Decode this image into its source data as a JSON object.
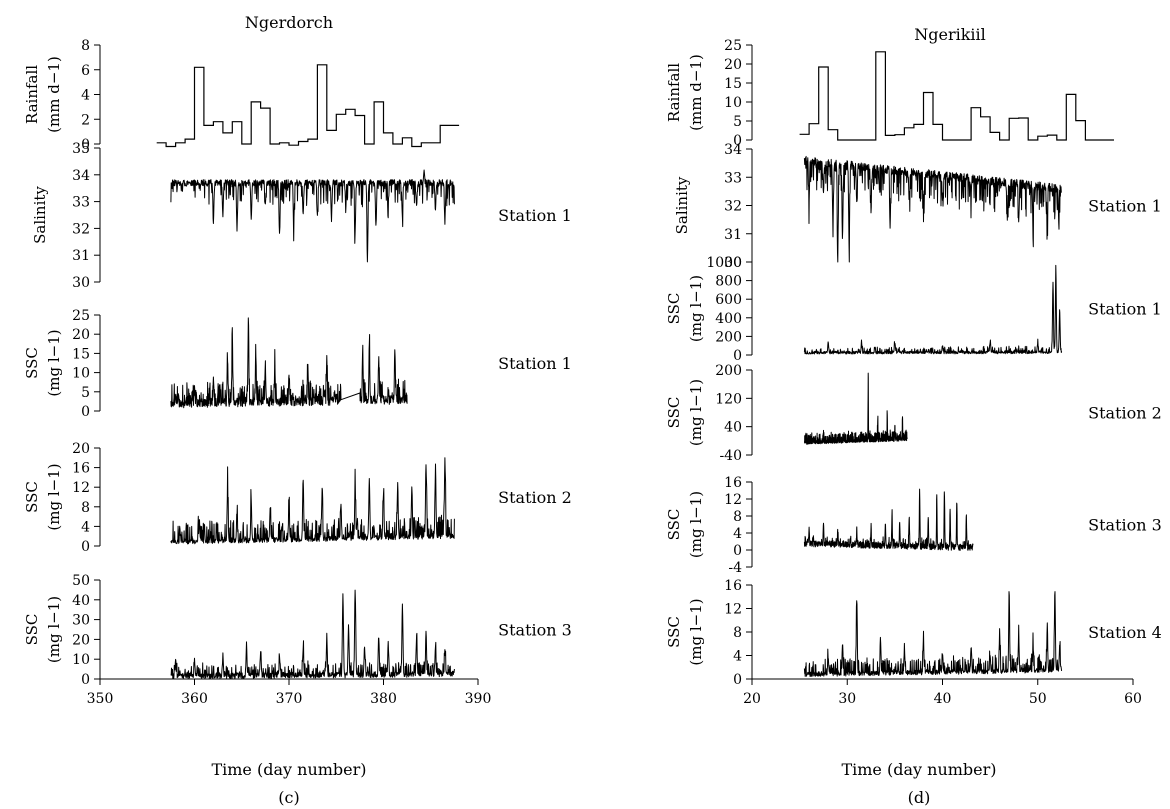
{
  "chart_data": [
    {
      "panel": "(c)",
      "title": "Ngerdorch",
      "type": "line",
      "xlabel": "Time (day number)",
      "xlim": [
        350,
        390
      ],
      "xticks": [
        350,
        360,
        370,
        380,
        390
      ],
      "subplots": [
        {
          "id": "c-rain",
          "kind": "step",
          "ylabel": [
            "Rainfall",
            "(mm d−1)"
          ],
          "station": "",
          "ylim": [
            0,
            8
          ],
          "yticks": [
            0,
            2,
            4,
            6,
            8
          ],
          "x": [
            356,
            357,
            358,
            359,
            360,
            361,
            362,
            363,
            364,
            365,
            366,
            367,
            368,
            369,
            370,
            371,
            372,
            373,
            374,
            375,
            376,
            377,
            378,
            379,
            380,
            381,
            382,
            383,
            384,
            385,
            386,
            387
          ],
          "values": [
            0.1,
            -0.2,
            0.1,
            0.4,
            6.2,
            1.5,
            1.8,
            0.9,
            1.8,
            0,
            3.4,
            2.9,
            0,
            0.1,
            -0.1,
            0.2,
            0.4,
            6.4,
            1.1,
            2.4,
            2.8,
            2.3,
            0,
            3.4,
            0.9,
            0,
            0.5,
            -0.2,
            0.1,
            0.1,
            1.5,
            1.5
          ]
        },
        {
          "id": "c-sal",
          "kind": "signal",
          "ylabel": [
            "Salinity"
          ],
          "station": "Station 1",
          "ylim": [
            30,
            35
          ],
          "yticks": [
            30,
            31,
            32,
            33,
            34,
            35
          ],
          "range": [
            357.5,
            387.5
          ],
          "base": 33.7,
          "baseEnd": 33.7,
          "noise": 0.12,
          "dir": -1,
          "spikes": [
            [
              362,
              1.6
            ],
            [
              363,
              1.2
            ],
            [
              364.5,
              1.8
            ],
            [
              366,
              1.4
            ],
            [
              367.5,
              0.9
            ],
            [
              369,
              1.9
            ],
            [
              370.5,
              1.7
            ],
            [
              371.5,
              1.2
            ],
            [
              373,
              1.1
            ],
            [
              374.5,
              1.4
            ],
            [
              376,
              0.9
            ],
            [
              377,
              1.8
            ],
            [
              378.3,
              2.9
            ],
            [
              379.2,
              1.6
            ],
            [
              380.5,
              0.8
            ],
            [
              382,
              1.4
            ],
            [
              383.5,
              0.9
            ],
            [
              384.3,
              -0.4
            ],
            [
              385.5,
              1.1
            ],
            [
              386.5,
              1.5
            ]
          ],
          "spikeRate": 0.18,
          "spikeMax": 0.8
        },
        {
          "id": "c-ssc1",
          "kind": "signal",
          "ylabel": [
            "SSC",
            "(mg l−1)"
          ],
          "station": "Station 1",
          "ylim": [
            0,
            25
          ],
          "yticks": [
            0,
            5,
            10,
            15,
            20,
            25
          ],
          "range": [
            357.5,
            382.5
          ],
          "gap": [
            375.5,
            377.5
          ],
          "base": 2.0,
          "baseEnd": 3.0,
          "noise": 1.2,
          "dir": 1,
          "spikes": [
            [
              358,
              3
            ],
            [
              360,
              5
            ],
            [
              362,
              7
            ],
            [
              363.5,
              11
            ],
            [
              364,
              16
            ],
            [
              365.7,
              22
            ],
            [
              366.5,
              12
            ],
            [
              367.5,
              8
            ],
            [
              368.5,
              10
            ],
            [
              370,
              6
            ],
            [
              372,
              9
            ],
            [
              374,
              11
            ],
            [
              377.8,
              13
            ],
            [
              378.5,
              15
            ],
            [
              379.5,
              10
            ],
            [
              381.2,
              14
            ]
          ],
          "spikeRate": 0.3,
          "spikeMax": 5
        },
        {
          "id": "c-ssc2",
          "kind": "signal",
          "ylabel": [
            "SSC",
            "(mg l−1)"
          ],
          "station": "Station 2",
          "ylim": [
            0,
            20
          ],
          "yticks": [
            0,
            4,
            8,
            12,
            16,
            20
          ],
          "range": [
            357.5,
            387.5
          ],
          "base": 0.8,
          "baseEnd": 2.0,
          "noise": 0.5,
          "dir": 1,
          "spikes": [
            [
              360.5,
              4
            ],
            [
              363.5,
              11
            ],
            [
              364.5,
              5
            ],
            [
              366,
              8
            ],
            [
              368,
              6
            ],
            [
              370,
              8
            ],
            [
              371.5,
              12
            ],
            [
              373.5,
              9
            ],
            [
              375.5,
              7
            ],
            [
              377,
              10
            ],
            [
              378.5,
              12
            ],
            [
              380,
              9
            ],
            [
              381.5,
              11
            ],
            [
              383,
              10
            ],
            [
              384.5,
              15
            ],
            [
              385.5,
              14
            ],
            [
              386.5,
              16
            ]
          ],
          "spikeRate": 0.35,
          "spikeMax": 4
        },
        {
          "id": "c-ssc3",
          "kind": "signal",
          "ylabel": [
            "SSC",
            "(mg l−1)"
          ],
          "station": "Station 3",
          "ylim": [
            0,
            50
          ],
          "yticks": [
            0,
            10,
            20,
            30,
            40,
            50
          ],
          "range": [
            357.5,
            387.5
          ],
          "base": 1.5,
          "baseEnd": 2.5,
          "noise": 1.5,
          "dir": 1,
          "spikes": [
            [
              358,
              8
            ],
            [
              360,
              6
            ],
            [
              363,
              9
            ],
            [
              365.5,
              14
            ],
            [
              367,
              12
            ],
            [
              369,
              9
            ],
            [
              371.5,
              14
            ],
            [
              374,
              18
            ],
            [
              375.7,
              41
            ],
            [
              376.3,
              25
            ],
            [
              377,
              43
            ],
            [
              378,
              14
            ],
            [
              379.5,
              18
            ],
            [
              380.5,
              16
            ],
            [
              382,
              35
            ],
            [
              383.5,
              19
            ],
            [
              384.5,
              21
            ],
            [
              385.5,
              14
            ],
            [
              386.5,
              12
            ]
          ],
          "spikeRate": 0.3,
          "spikeMax": 6
        }
      ]
    },
    {
      "panel": "(d)",
      "title": "Ngerikiil",
      "type": "line",
      "xlabel": "Time (day number)",
      "xlim": [
        20,
        60
      ],
      "xticks": [
        20,
        30,
        40,
        50,
        60
      ],
      "subplots": [
        {
          "id": "d-rain",
          "kind": "step",
          "ylabel": [
            "Rainfall",
            "(mm d−1)"
          ],
          "station": "",
          "ylim": [
            0,
            25
          ],
          "yticks": [
            0,
            5,
            10,
            15,
            20,
            25
          ],
          "x": [
            25,
            26,
            27,
            28,
            29,
            30,
            31,
            32,
            33,
            34,
            35,
            36,
            37,
            38,
            39,
            40,
            41,
            42,
            43,
            44,
            45,
            46,
            47,
            48,
            49,
            50,
            51,
            52,
            53,
            54,
            55,
            56,
            57
          ],
          "values": [
            1.5,
            4.3,
            19.2,
            2.7,
            0,
            0,
            0,
            0,
            23.2,
            1.2,
            1.4,
            3.2,
            4.1,
            12.5,
            4.1,
            0,
            0,
            0,
            8.5,
            6.1,
            2,
            0,
            5.7,
            5.8,
            0,
            1,
            1.3,
            0,
            12,
            5.1,
            0,
            0,
            0
          ]
        },
        {
          "id": "d-sal",
          "kind": "signal",
          "ylabel": [
            "Salinity"
          ],
          "station": "Station 1",
          "ylim": [
            30,
            34
          ],
          "yticks": [
            30,
            31,
            32,
            33,
            34
          ],
          "range": [
            25.5,
            52.5
          ],
          "base": 33.6,
          "baseEnd": 32.6,
          "noise": 0.15,
          "dir": -1,
          "spikes": [
            [
              26,
              1.5
            ],
            [
              27.5,
              1.1
            ],
            [
              28.5,
              2.4
            ],
            [
              29,
              3.6
            ],
            [
              29.5,
              2.7
            ],
            [
              30.2,
              3.1
            ],
            [
              31,
              1.3
            ],
            [
              32.5,
              1.4
            ],
            [
              34.5,
              2.1
            ],
            [
              36.5,
              1
            ],
            [
              38,
              1.2
            ],
            [
              40,
              0.8
            ],
            [
              43,
              0.6
            ],
            [
              46.8,
              1.2
            ],
            [
              48,
              1.3
            ],
            [
              49.5,
              1.3
            ],
            [
              51,
              1.1
            ],
            [
              52.2,
              1.1
            ]
          ],
          "spikeRate": 0.3,
          "spikeMax": 1.0
        },
        {
          "id": "d-ssc1",
          "kind": "signal",
          "ylabel": [
            "SSC",
            "(mg l−1)"
          ],
          "station": "Station 1",
          "ylim": [
            0,
            1000
          ],
          "yticks": [
            0,
            200,
            400,
            600,
            800,
            1000
          ],
          "range": [
            25.5,
            52.5
          ],
          "base": 25,
          "baseEnd": 30,
          "noise": 15,
          "dir": 1,
          "spikes": [
            [
              28,
              100
            ],
            [
              31.5,
              120
            ],
            [
              35,
              90
            ],
            [
              40,
              80
            ],
            [
              45,
              90
            ],
            [
              50,
              110
            ],
            [
              51.6,
              750
            ],
            [
              51.9,
              930
            ],
            [
              52.3,
              460
            ]
          ],
          "spikeRate": 0.25,
          "spikeMax": 60
        },
        {
          "id": "d-ssc2",
          "kind": "signal",
          "ylabel": [
            "SSC",
            "(mg l−1)"
          ],
          "station": "Station 2",
          "ylim": [
            -40,
            200
          ],
          "yticks": [
            -40,
            40,
            120,
            200
          ],
          "range": [
            25.5,
            36.3
          ],
          "base": -5,
          "baseEnd": 5,
          "noise": 5,
          "dir": 1,
          "spikes": [
            [
              27.5,
              25
            ],
            [
              30.5,
              20
            ],
            [
              32.2,
              190
            ],
            [
              33.2,
              60
            ],
            [
              34.2,
              70
            ],
            [
              35,
              45
            ],
            [
              35.8,
              60
            ]
          ],
          "spikeRate": 0.25,
          "spikeMax": 25
        },
        {
          "id": "d-ssc3",
          "kind": "signal",
          "ylabel": [
            "SSC",
            "(mg l−1)"
          ],
          "station": "Station 3",
          "ylim": [
            -4,
            16
          ],
          "yticks": [
            -4,
            0,
            4,
            8,
            12,
            16
          ],
          "range": [
            25.5,
            43.2
          ],
          "base": 1.5,
          "baseEnd": 0.5,
          "noise": 0.7,
          "dir": 1,
          "spikes": [
            [
              26,
              3.5
            ],
            [
              27.5,
              5
            ],
            [
              29,
              3
            ],
            [
              31,
              4
            ],
            [
              32.5,
              4
            ],
            [
              34,
              5
            ],
            [
              34.7,
              8.5
            ],
            [
              35.5,
              6
            ],
            [
              36.5,
              7
            ],
            [
              37.6,
              13
            ],
            [
              38.5,
              7
            ],
            [
              39.4,
              12
            ],
            [
              40.2,
              13
            ],
            [
              40.8,
              9
            ],
            [
              41.5,
              11
            ],
            [
              42.5,
              8
            ]
          ],
          "spikeRate": 0.25,
          "spikeMax": 1.5
        },
        {
          "id": "d-ssc4",
          "kind": "signal",
          "ylabel": [
            "SSC",
            "(mg l−1)"
          ],
          "station": "Station 4",
          "ylim": [
            0,
            16
          ],
          "yticks": [
            0,
            4,
            8,
            12,
            16
          ],
          "range": [
            25.5,
            52.5
          ],
          "base": 0.8,
          "baseEnd": 1.5,
          "noise": 0.4,
          "dir": 1,
          "spikes": [
            [
              28,
              3
            ],
            [
              29.5,
              5
            ],
            [
              31,
              13
            ],
            [
              33.5,
              5
            ],
            [
              36,
              4
            ],
            [
              38,
              6
            ],
            [
              40,
              3
            ],
            [
              43,
              4
            ],
            [
              45,
              3
            ],
            [
              46,
              7
            ],
            [
              47,
              13.5
            ],
            [
              48,
              6
            ],
            [
              49.5,
              4
            ],
            [
              51,
              8
            ],
            [
              51.8,
              13.5
            ],
            [
              52.3,
              4
            ]
          ],
          "spikeRate": 0.3,
          "spikeMax": 2.5
        }
      ]
    }
  ]
}
